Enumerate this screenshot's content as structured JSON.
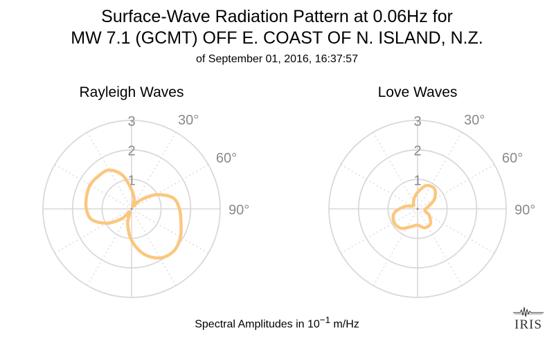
{
  "header": {
    "title_line1": "Surface-Wave Radiation Pattern at 0.06Hz for",
    "title_line2": "MW 7.1 (GCMT) OFF E. COAST OF N. ISLAND, N.Z.",
    "subtitle": "of September 01, 2016, 16:37:57"
  },
  "footer": {
    "xlabel_prefix": "Spectral Amplitudes in 10",
    "xlabel_exp": "−1",
    "xlabel_unit": " m/Hz",
    "logo_text": "IRIS"
  },
  "colors": {
    "curve": "#fbc77e",
    "grid": "#d9d9d9",
    "tick": "#8a8a8a"
  },
  "chart_data": [
    {
      "type": "polar-line",
      "title": "Rayleigh Waves",
      "r_ticks": [
        "1",
        "2",
        "3"
      ],
      "theta_ticks": [
        "30°",
        "60°",
        "90°"
      ],
      "rmax": 3,
      "theta_unit": "degrees clockwise from north",
      "series": [
        {
          "theta": [
            0,
            15,
            30,
            45,
            60,
            75,
            90,
            105,
            120,
            135,
            150,
            165,
            180,
            195,
            210,
            225,
            240,
            255,
            270,
            285,
            300,
            315,
            330,
            345,
            360
          ],
          "r": [
            0.65,
            0.34,
            0.1,
            0.42,
            0.96,
            1.45,
            1.62,
            1.73,
            1.91,
            2.02,
            1.92,
            1.58,
            1.07,
            0.51,
            0.12,
            0.47,
            0.97,
            1.4,
            1.53,
            1.58,
            1.62,
            1.58,
            1.52,
            1.18,
            0.65
          ]
        }
      ]
    },
    {
      "type": "polar-line",
      "title": "Love Waves",
      "r_ticks": [
        "1",
        "2",
        "3"
      ],
      "theta_ticks": [
        "30°",
        "60°",
        "90°"
      ],
      "rmax": 3,
      "theta_unit": "degrees clockwise from north",
      "series": [
        {
          "theta": [
            0,
            20,
            40,
            60,
            80,
            100,
            120,
            140,
            160,
            180,
            200,
            220,
            240,
            260,
            280,
            300,
            320,
            340,
            360
          ],
          "r": [
            0.56,
            0.84,
            0.89,
            0.66,
            0.35,
            0.25,
            0.46,
            0.67,
            0.68,
            0.55,
            0.64,
            0.86,
            0.92,
            0.8,
            0.45,
            0.19,
            0.22,
            0.36,
            0.56
          ]
        }
      ]
    }
  ]
}
